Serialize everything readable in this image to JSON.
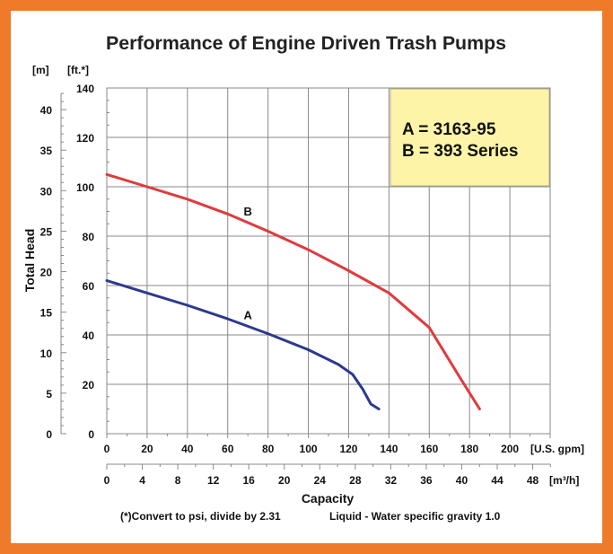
{
  "chart_data": {
    "type": "line",
    "title": "Performance of Engine Driven Trash Pumps",
    "ylabel": "Total Head",
    "xlabel": "Capacity",
    "y_left_unit": "[m]",
    "y_right_unit": "[ft.*]",
    "x_top_unit": "[U.S. gpm]",
    "x_bottom_unit": "[m³/h]",
    "ft_ticks": [
      "0",
      "20",
      "40",
      "60",
      "80",
      "100",
      "120",
      "140"
    ],
    "m_ticks": [
      "0",
      "5",
      "10",
      "15",
      "20",
      "25",
      "30",
      "35",
      "40"
    ],
    "gpm_ticks": [
      "0",
      "20",
      "40",
      "60",
      "80",
      "100",
      "120",
      "140",
      "160",
      "180",
      "200"
    ],
    "m3h_ticks": [
      "0",
      "4",
      "8",
      "12",
      "16",
      "20",
      "24",
      "28",
      "32",
      "36",
      "40",
      "44",
      "48"
    ],
    "xlim_gpm": [
      0,
      220
    ],
    "ylim_ft": [
      0,
      140
    ],
    "grid": true,
    "legend_lines": [
      "A = 3163-95",
      "B = 393 Series"
    ],
    "legend_position": "top-right",
    "footnote_left": "(*)Convert to psi, divide by 2.31",
    "footnote_right": "Liquid - Water specific gravity 1.0",
    "series": [
      {
        "name": "A",
        "color": "#2b3990",
        "x": [
          0,
          20,
          40,
          60,
          80,
          100,
          115,
          122,
          127,
          131,
          135
        ],
        "y": [
          62,
          57,
          52,
          46.5,
          40.5,
          34,
          28,
          24,
          18,
          12,
          10
        ]
      },
      {
        "name": "B",
        "color": "#e03a3e",
        "x": [
          0,
          20,
          40,
          60,
          80,
          100,
          120,
          140,
          160,
          175,
          185
        ],
        "y": [
          105,
          100,
          95,
          89,
          82,
          74.5,
          66,
          57,
          43,
          23,
          10
        ]
      }
    ]
  }
}
